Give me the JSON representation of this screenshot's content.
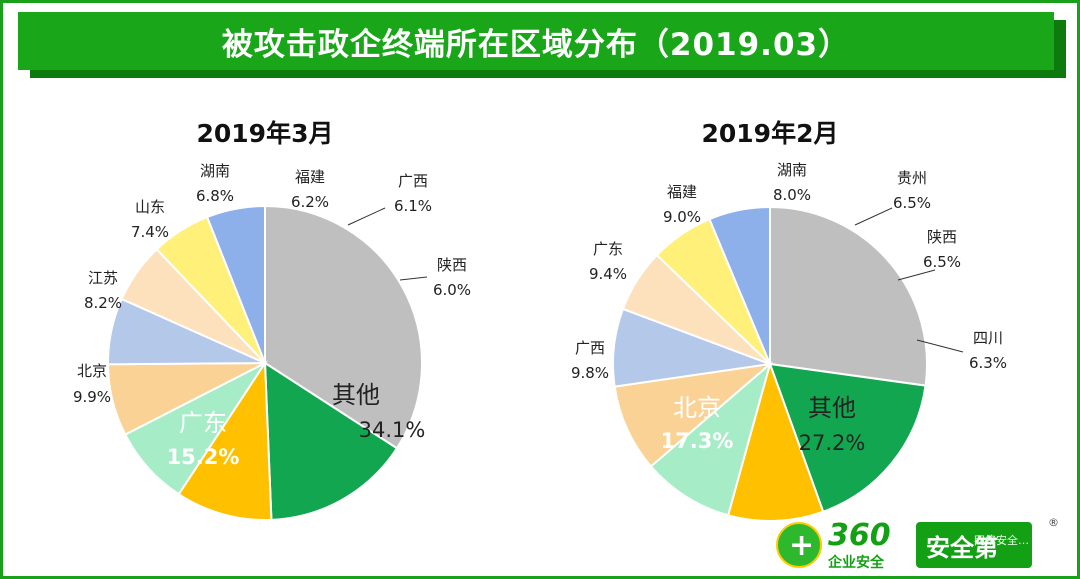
{
  "banner": {
    "title": "被攻击政企终端所在区域分布（2019.03）"
  },
  "chart_data": [
    {
      "type": "pie",
      "title": "2019年3月",
      "unit": "%",
      "slices": [
        {
          "label": "其他",
          "value": 34.1,
          "display": "34.1%",
          "color": "#bfbfbf"
        },
        {
          "label": "广东",
          "value": 15.2,
          "display": "15.2%",
          "color": "#12a650"
        },
        {
          "label": "北京",
          "value": 9.9,
          "display": "9.9%",
          "color": "#ffc000"
        },
        {
          "label": "江苏",
          "value": 8.2,
          "display": "8.2%",
          "color": "#a6ecc6"
        },
        {
          "label": "山东",
          "value": 7.4,
          "display": "7.4%",
          "color": "#fad296"
        },
        {
          "label": "湖南",
          "value": 6.8,
          "display": "6.8%",
          "color": "#b4c8ea"
        },
        {
          "label": "福建",
          "value": 6.2,
          "display": "6.2%",
          "color": "#fde1bd"
        },
        {
          "label": "广西",
          "value": 6.1,
          "display": "6.1%",
          "color": "#fff07a"
        },
        {
          "label": "陕西",
          "value": 6.0,
          "display": "6.0%",
          "color": "#8eb0ea"
        }
      ]
    },
    {
      "type": "pie",
      "title": "2019年2月",
      "unit": "%",
      "slices": [
        {
          "label": "其他",
          "value": 27.2,
          "display": "27.2%",
          "color": "#bfbfbf"
        },
        {
          "label": "北京",
          "value": 17.3,
          "display": "17.3%",
          "color": "#12a650"
        },
        {
          "label": "广西",
          "value": 9.8,
          "display": "9.8%",
          "color": "#ffc000"
        },
        {
          "label": "广东",
          "value": 9.4,
          "display": "9.4%",
          "color": "#a6ecc6"
        },
        {
          "label": "福建",
          "value": 9.0,
          "display": "9.0%",
          "color": "#fad296"
        },
        {
          "label": "湖南",
          "value": 8.0,
          "display": "8.0%",
          "color": "#b4c8ea"
        },
        {
          "label": "贵州",
          "value": 6.5,
          "display": "6.5%",
          "color": "#fde1bd"
        },
        {
          "label": "陕西",
          "value": 6.5,
          "display": "6.5%",
          "color": "#fff07a"
        },
        {
          "label": "四川",
          "value": 6.3,
          "display": "6.3%",
          "color": "#8eb0ea"
        }
      ]
    }
  ],
  "logo": {
    "number": "360",
    "subtitle": "企业安全",
    "badge": "安全第",
    "watermark": "网络安全…",
    "registered": "®"
  }
}
